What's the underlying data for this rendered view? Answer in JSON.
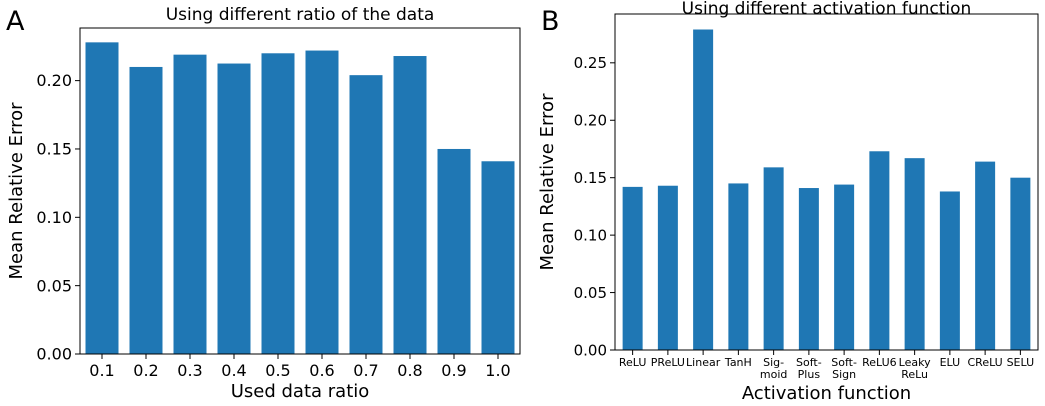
{
  "chart_data": [
    {
      "panel_letter": "A",
      "type": "bar",
      "title": "Using different ratio of the data",
      "xlabel": "Used data ratio",
      "ylabel": "Mean Relative Error",
      "categories": [
        "0.1",
        "0.2",
        "0.3",
        "0.4",
        "0.5",
        "0.6",
        "0.7",
        "0.8",
        "0.9",
        "1.0"
      ],
      "values": [
        0.228,
        0.21,
        0.219,
        0.2125,
        0.22,
        0.222,
        0.204,
        0.218,
        0.15,
        0.141
      ],
      "yticks": [
        "0.00",
        "0.05",
        "0.10",
        "0.15",
        "0.20"
      ],
      "ytick_values": [
        0,
        0.05,
        0.1,
        0.15,
        0.2
      ],
      "ylim": [
        0,
        0.2385
      ],
      "bar_color": "#1f77b4",
      "grid": false
    },
    {
      "panel_letter": "B",
      "type": "bar",
      "title": "Using different activation function",
      "xlabel": "Activation function",
      "ylabel": "Mean Relative Error",
      "categories": [
        "ReLU",
        "PReLU",
        "Linear",
        "TanH",
        "Sig-\nmoid",
        "Soft-\nPlus",
        "Soft-\nSign",
        "ReLU6",
        "Leaky\nReLu",
        "ELU",
        "CReLU",
        "SELU"
      ],
      "values": [
        0.142,
        0.143,
        0.279,
        0.145,
        0.159,
        0.141,
        0.144,
        0.173,
        0.167,
        0.138,
        0.164,
        0.15
      ],
      "yticks": [
        "0.00",
        "0.05",
        "0.10",
        "0.15",
        "0.20",
        "0.25"
      ],
      "ytick_values": [
        0,
        0.05,
        0.1,
        0.15,
        0.2,
        0.25
      ],
      "ylim": [
        0,
        0.2925
      ],
      "bar_color": "#1f77b4",
      "grid": false
    }
  ]
}
